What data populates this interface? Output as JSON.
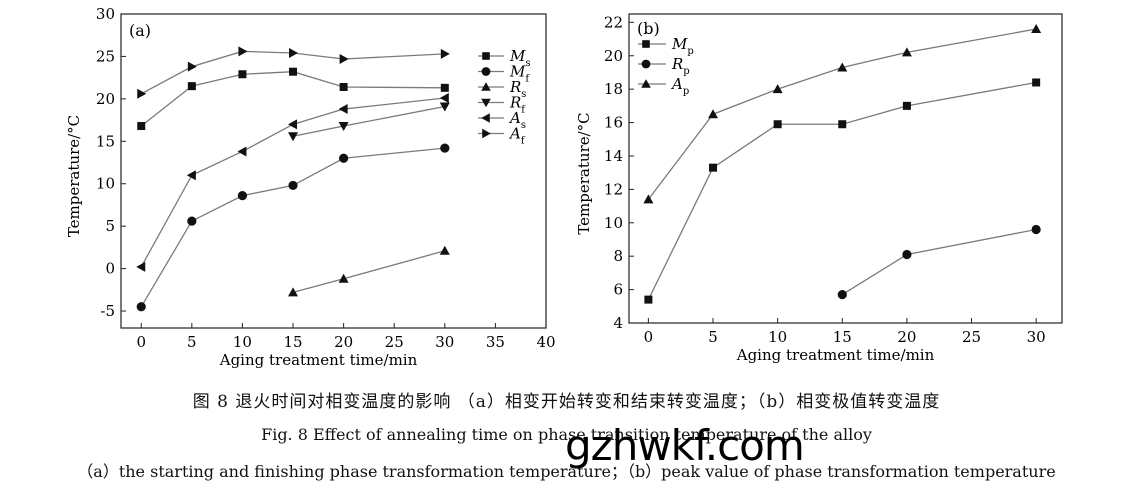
{
  "chart_data": [
    {
      "type": "line",
      "panel_label": "(a)",
      "xlabel": "Aging treatment time/min",
      "ylabel": "Temperature/°C",
      "xlim": [
        -2,
        40
      ],
      "ylim": [
        -7,
        30
      ],
      "xticks": [
        0,
        5,
        10,
        15,
        20,
        25,
        30,
        35,
        40
      ],
      "yticks": [
        -5,
        0,
        5,
        10,
        15,
        20,
        25,
        30
      ],
      "ytick_labels": [
        "-5",
        "0",
        "5",
        "10",
        "15",
        "20",
        "25",
        "30"
      ],
      "legend_position": "right",
      "series": [
        {
          "name": "M",
          "sub": "s",
          "marker": "square",
          "x": [
            0,
            5,
            10,
            15,
            20,
            30
          ],
          "values": [
            16.8,
            21.5,
            22.9,
            23.2,
            21.4,
            21.3
          ]
        },
        {
          "name": "M",
          "sub": "f",
          "marker": "circle",
          "x": [
            0,
            5,
            10,
            15,
            20,
            30
          ],
          "values": [
            -4.5,
            5.6,
            8.6,
            9.8,
            13.0,
            14.2
          ]
        },
        {
          "name": "R",
          "sub": "s",
          "marker": "triangle-up",
          "x": [
            15,
            20,
            30
          ],
          "values": [
            -2.8,
            -1.2,
            2.1
          ]
        },
        {
          "name": "R",
          "sub": "f",
          "marker": "triangle-down",
          "x": [
            15,
            20,
            30
          ],
          "values": [
            15.6,
            16.8,
            19.1
          ]
        },
        {
          "name": "A",
          "sub": "s",
          "marker": "triangle-left",
          "x": [
            0,
            5,
            10,
            15,
            20,
            30
          ],
          "values": [
            0.2,
            11.0,
            13.8,
            17.0,
            18.8,
            20.1
          ]
        },
        {
          "name": "A",
          "sub": "f",
          "marker": "triangle-right",
          "x": [
            0,
            5,
            10,
            15,
            20,
            30
          ],
          "values": [
            20.6,
            23.8,
            25.6,
            25.4,
            24.7,
            25.3
          ]
        }
      ]
    },
    {
      "type": "line",
      "panel_label": "(b)",
      "xlabel": "Aging treatment time/min",
      "ylabel": "Temperature/°C",
      "xlim": [
        -1.5,
        32
      ],
      "ylim": [
        4,
        22.5
      ],
      "xticks": [
        0,
        5,
        10,
        15,
        20,
        25,
        30
      ],
      "yticks": [
        4,
        6,
        8,
        10,
        12,
        14,
        16,
        18,
        20,
        22
      ],
      "ytick_labels": [
        "4",
        "6",
        "8",
        "10",
        "12",
        "14",
        "16",
        "18",
        "20",
        "22"
      ],
      "legend_position": "top-left",
      "series": [
        {
          "name": "M",
          "sub": "p",
          "marker": "square",
          "x": [
            0,
            5,
            10,
            15,
            20,
            30
          ],
          "values": [
            5.4,
            13.3,
            15.9,
            15.9,
            17.0,
            18.4
          ]
        },
        {
          "name": "R",
          "sub": "p",
          "marker": "circle",
          "x": [
            15,
            20,
            30
          ],
          "values": [
            5.7,
            8.1,
            9.6
          ]
        },
        {
          "name": "A",
          "sub": "p",
          "marker": "triangle-up",
          "x": [
            0,
            5,
            10,
            15,
            20,
            30
          ],
          "values": [
            11.4,
            16.5,
            18.0,
            19.3,
            20.2,
            21.6
          ]
        }
      ]
    }
  ],
  "caption": {
    "cn": "图 8   退火时间对相变温度的影响  （a）相变开始转变和结束转变温度；（b）相变极值转变温度",
    "en_line1": "Fig. 8    Effect of annealing time on phase transition temperature of the alloy",
    "en_line2": "（a）the starting and finishing phase transformation temperature；（b）peak value of phase transformation temperature"
  },
  "watermark": "gzhwkf.com",
  "colors": {
    "line": "#7a7a7a",
    "marker": "#111111",
    "axis": "#222222"
  }
}
